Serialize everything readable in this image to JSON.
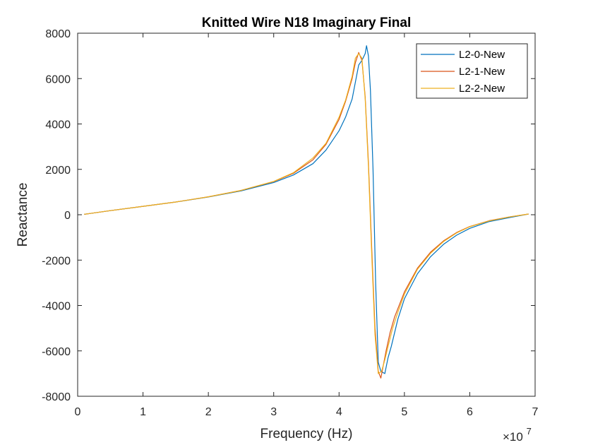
{
  "chart_data": {
    "type": "line",
    "title": "Knitted Wire N18 Imaginary Final",
    "xlabel": "Frequency (Hz)",
    "ylabel": "Reactance",
    "x_multiplier_label": "×10",
    "x_multiplier_exponent": "7",
    "xlim": [
      0,
      7
    ],
    "ylim": [
      -8000,
      8000
    ],
    "xticks": [
      0,
      1,
      2,
      3,
      4,
      5,
      6,
      7
    ],
    "xtick_labels": [
      "0",
      "1",
      "2",
      "3",
      "4",
      "5",
      "6",
      "7"
    ],
    "yticks": [
      -8000,
      -6000,
      -4000,
      -2000,
      0,
      2000,
      4000,
      6000,
      8000
    ],
    "ytick_labels": [
      "-8000",
      "-6000",
      "-4000",
      "-2000",
      "0",
      "2000",
      "4000",
      "6000",
      "8000"
    ],
    "grid": false,
    "legend_position": "top-right",
    "series": [
      {
        "name": "L2-0-New",
        "color": "#0072BD",
        "x": [
          0.1,
          0.5,
          1.0,
          1.5,
          2.0,
          2.5,
          3.0,
          3.3,
          3.6,
          3.8,
          4.0,
          4.1,
          4.2,
          4.3,
          4.35,
          4.4,
          4.42,
          4.45,
          4.48,
          4.52,
          4.56,
          4.6,
          4.64,
          4.7,
          4.75,
          4.8,
          4.9,
          5.0,
          5.2,
          5.4,
          5.6,
          5.8,
          6.0,
          6.3,
          6.6,
          6.9
        ],
        "y": [
          20,
          180,
          370,
          560,
          780,
          1050,
          1420,
          1750,
          2250,
          2850,
          3700,
          4300,
          5100,
          6600,
          6800,
          7100,
          7450,
          7000,
          5500,
          2000,
          -3000,
          -6500,
          -6900,
          -7000,
          -6300,
          -5800,
          -4600,
          -3700,
          -2600,
          -1850,
          -1300,
          -900,
          -600,
          -300,
          -130,
          30
        ]
      },
      {
        "name": "L2-1-New",
        "color": "#D95319",
        "x": [
          0.1,
          0.5,
          1.0,
          1.5,
          2.0,
          2.5,
          3.0,
          3.3,
          3.6,
          3.8,
          4.0,
          4.1,
          4.2,
          4.25,
          4.3,
          4.35,
          4.4,
          4.45,
          4.5,
          4.55,
          4.6,
          4.64,
          4.68,
          4.72,
          4.78,
          4.85,
          5.0,
          5.2,
          5.4,
          5.6,
          5.8,
          6.0,
          6.3,
          6.6,
          6.9
        ],
        "y": [
          20,
          180,
          370,
          560,
          790,
          1070,
          1460,
          1820,
          2420,
          3100,
          4200,
          5000,
          6000,
          6700,
          7150,
          6800,
          5200,
          2300,
          -1500,
          -5000,
          -6900,
          -7200,
          -6600,
          -6000,
          -5200,
          -4500,
          -3400,
          -2350,
          -1650,
          -1150,
          -780,
          -520,
          -260,
          -100,
          30
        ]
      },
      {
        "name": "L2-2-New",
        "color": "#EDB120",
        "x": [
          0.1,
          0.5,
          1.0,
          1.5,
          2.0,
          2.5,
          3.0,
          3.3,
          3.6,
          3.8,
          4.0,
          4.1,
          4.2,
          4.25,
          4.3,
          4.35,
          4.4,
          4.45,
          4.5,
          4.55,
          4.6,
          4.65,
          4.7,
          4.75,
          4.82,
          4.9,
          5.0,
          5.2,
          5.4,
          5.6,
          5.8,
          6.0,
          6.3,
          6.6,
          6.9
        ],
        "y": [
          20,
          180,
          370,
          560,
          790,
          1070,
          1470,
          1850,
          2500,
          3150,
          4300,
          5050,
          6100,
          6900,
          7100,
          6900,
          5100,
          2100,
          -1800,
          -5300,
          -7000,
          -6900,
          -6400,
          -5800,
          -5000,
          -4300,
          -3500,
          -2400,
          -1700,
          -1180,
          -800,
          -530,
          -270,
          -100,
          30
        ]
      }
    ]
  }
}
